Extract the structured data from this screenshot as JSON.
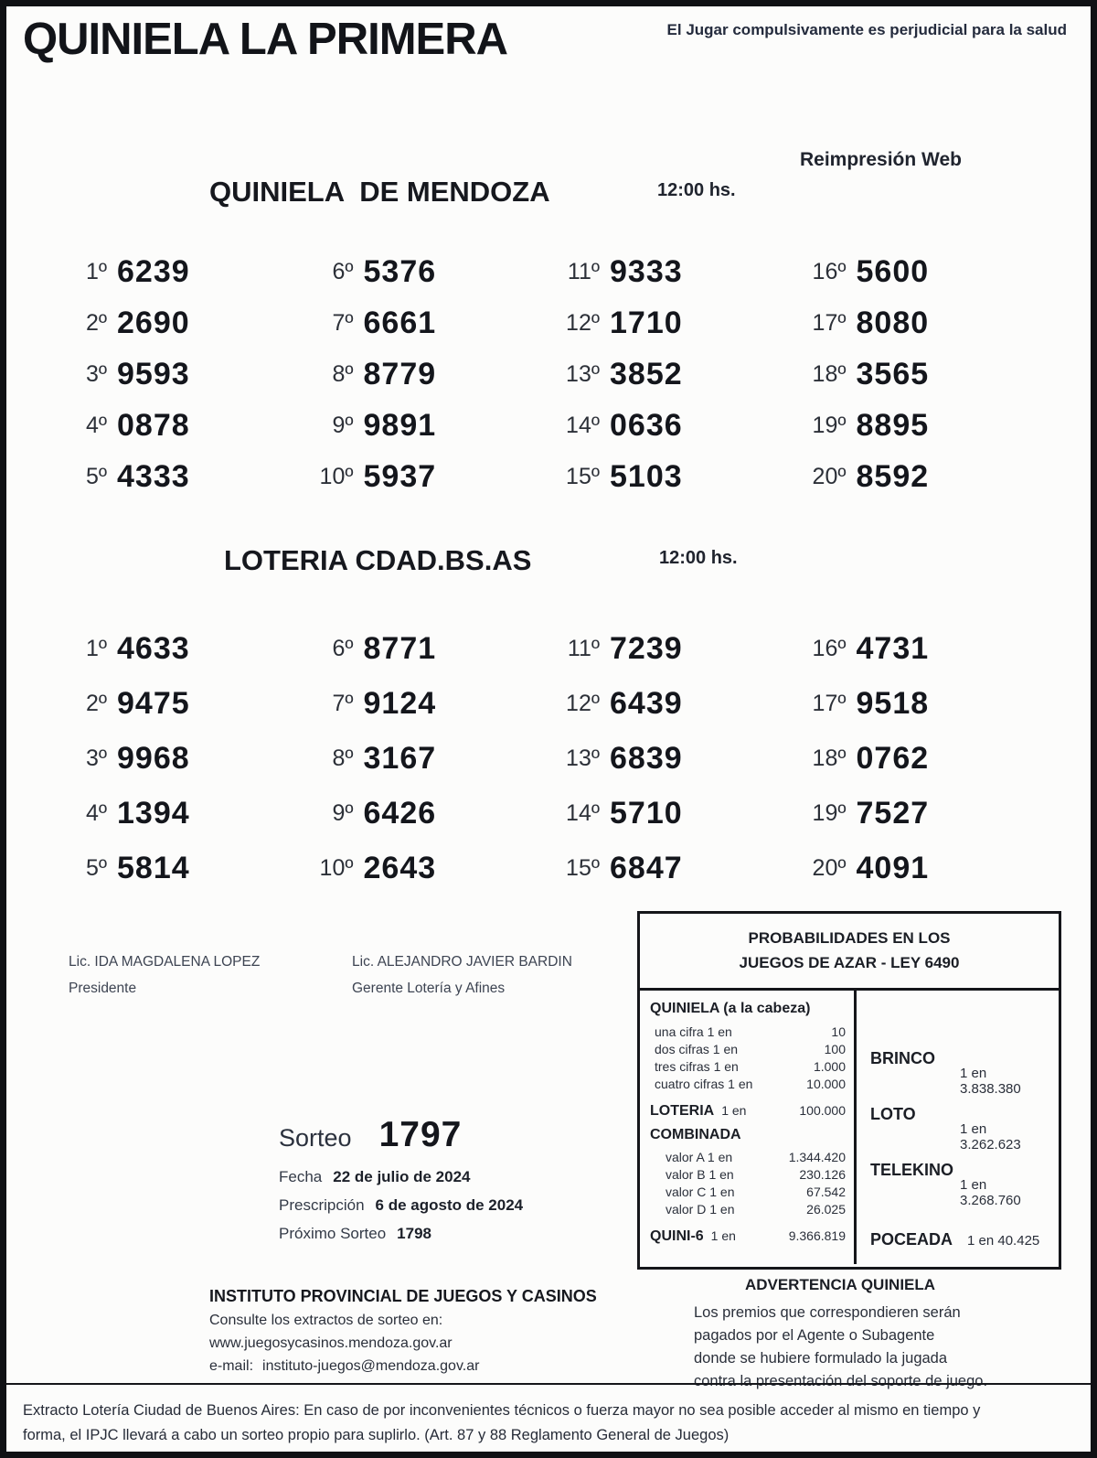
{
  "page": {
    "title": "QUINIELA LA PRIMERA",
    "health_warning": "El Jugar compulsivamente es perjudicial para la salud",
    "reprint_label": "Reimpresión Web"
  },
  "draws": [
    {
      "name": "QUINIELA  DE MENDOZA",
      "time": "12:00 hs.",
      "results": [
        {
          "pos": "1º",
          "num": "6239"
        },
        {
          "pos": "2º",
          "num": "2690"
        },
        {
          "pos": "3º",
          "num": "9593"
        },
        {
          "pos": "4º",
          "num": "0878"
        },
        {
          "pos": "5º",
          "num": "4333"
        },
        {
          "pos": "6º",
          "num": "5376"
        },
        {
          "pos": "7º",
          "num": "6661"
        },
        {
          "pos": "8º",
          "num": "8779"
        },
        {
          "pos": "9º",
          "num": "9891"
        },
        {
          "pos": "10º",
          "num": "5937"
        },
        {
          "pos": "11º",
          "num": "9333"
        },
        {
          "pos": "12º",
          "num": "1710"
        },
        {
          "pos": "13º",
          "num": "3852"
        },
        {
          "pos": "14º",
          "num": "0636"
        },
        {
          "pos": "15º",
          "num": "5103"
        },
        {
          "pos": "16º",
          "num": "5600"
        },
        {
          "pos": "17º",
          "num": "8080"
        },
        {
          "pos": "18º",
          "num": "3565"
        },
        {
          "pos": "19º",
          "num": "8895"
        },
        {
          "pos": "20º",
          "num": "8592"
        }
      ]
    },
    {
      "name": "LOTERIA CDAD.BS.AS",
      "time": "12:00 hs.",
      "results": [
        {
          "pos": "1º",
          "num": "4633"
        },
        {
          "pos": "2º",
          "num": "9475"
        },
        {
          "pos": "3º",
          "num": "9968"
        },
        {
          "pos": "4º",
          "num": "1394"
        },
        {
          "pos": "5º",
          "num": "5814"
        },
        {
          "pos": "6º",
          "num": "8771"
        },
        {
          "pos": "7º",
          "num": "9124"
        },
        {
          "pos": "8º",
          "num": "3167"
        },
        {
          "pos": "9º",
          "num": "6426"
        },
        {
          "pos": "10º",
          "num": "2643"
        },
        {
          "pos": "11º",
          "num": "7239"
        },
        {
          "pos": "12º",
          "num": "6439"
        },
        {
          "pos": "13º",
          "num": "6839"
        },
        {
          "pos": "14º",
          "num": "5710"
        },
        {
          "pos": "15º",
          "num": "6847"
        },
        {
          "pos": "16º",
          "num": "4731"
        },
        {
          "pos": "17º",
          "num": "9518"
        },
        {
          "pos": "18º",
          "num": "0762"
        },
        {
          "pos": "19º",
          "num": "7527"
        },
        {
          "pos": "20º",
          "num": "4091"
        }
      ]
    }
  ],
  "signatures": [
    {
      "name": "Lic. IDA MAGDALENA LOPEZ",
      "role": "Presidente"
    },
    {
      "name": "Lic. ALEJANDRO JAVIER BARDIN",
      "role": "Gerente Lotería y Afines"
    }
  ],
  "sorteo": {
    "label": "Sorteo",
    "number": "1797",
    "fecha_label": "Fecha",
    "fecha": "22 de julio de 2024",
    "prescripcion_label": "Prescripción",
    "prescripcion": "6 de agosto de 2024",
    "proximo_label": "Próximo Sorteo",
    "proximo": "1798"
  },
  "probabilities": {
    "title_line1": "PROBABILIDADES EN LOS",
    "title_line2": "JUEGOS DE AZAR - LEY 6490",
    "quiniela_header": "QUINIELA (a la cabeza)",
    "quiniela_rows": [
      {
        "label": "una cifra  1 en",
        "value": "10"
      },
      {
        "label": "dos cifras 1 en",
        "value": "100"
      },
      {
        "label": "tres cifras 1 en",
        "value": "1.000"
      },
      {
        "label": "cuatro cifras 1 en",
        "value": "10.000"
      }
    ],
    "loteria": {
      "name": "LOTERIA",
      "mid": "1 en",
      "value": "100.000"
    },
    "combinada_header": "COMBINADA",
    "combinada_rows": [
      {
        "label": "valor A 1 en",
        "value": "1.344.420"
      },
      {
        "label": "valor B 1 en",
        "value": "230.126"
      },
      {
        "label": "valor C 1 en",
        "value": "67.542"
      },
      {
        "label": "valor D 1 en",
        "value": "26.025"
      }
    ],
    "quini6": {
      "name": "QUINI-6",
      "mid": "1 en",
      "value": "9.366.819"
    },
    "right_games": [
      {
        "name": "BRINCO",
        "odds": "1 en 3.838.380",
        "inline": false
      },
      {
        "name": "LOTO",
        "odds": "1 en 3.262.623",
        "inline": false
      },
      {
        "name": "TELEKINO",
        "odds": "1 en 3.268.760",
        "inline": false
      },
      {
        "name": "POCEADA",
        "odds": "1 en 40.425",
        "inline": true
      }
    ]
  },
  "advertencia": {
    "title": "ADVERTENCIA QUINIELA",
    "lines": [
      "Los premios que correspondieren serán",
      "pagados por el Agente o Subagente",
      "donde se hubiere formulado la jugada",
      "contra la presentación del soporte de juego."
    ]
  },
  "instituto": {
    "name": "INSTITUTO PROVINCIAL DE JUEGOS Y CASINOS",
    "line1": "Consulte los extractos de sorteo en:",
    "website": "www.juegosycasinos.mendoza.gov.ar",
    "email_label": "e-mail:",
    "email": "instituto-juegos@mendoza.gov.ar"
  },
  "footer": {
    "lines": [
      "Extracto Lotería Ciudad de Buenos Aires: En caso de por inconvenientes técnicos o fuerza mayor no sea posible acceder al mismo en tiempo y",
      "forma, el IPJC llevará a cabo un sorteo propio para suplirlo. (Art. 87 y 88 Reglamento General de Juegos)"
    ]
  }
}
